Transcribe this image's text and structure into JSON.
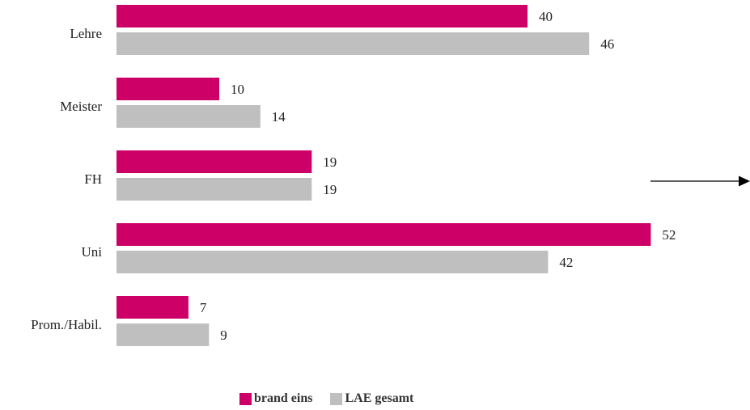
{
  "chart_data": {
    "type": "bar",
    "orientation": "horizontal",
    "categories": [
      "Lehre",
      "Meister",
      "FH",
      "Uni",
      "Prom./Habil."
    ],
    "series": [
      {
        "name": "brand eins",
        "values": [
          40,
          10,
          19,
          52,
          7
        ],
        "color": "#cc0066"
      },
      {
        "name": "LAE gesamt",
        "values": [
          46,
          14,
          19,
          42,
          9
        ],
        "color": "#bfbfbf"
      }
    ],
    "title": "",
    "xlabel": "",
    "ylabel": "",
    "xlim": [
      0,
      52
    ],
    "grid": false,
    "legend_position": "bottom",
    "annotations": [
      {
        "type": "arrow",
        "direction": "right",
        "icon": "arrow-right-icon"
      }
    ]
  }
}
